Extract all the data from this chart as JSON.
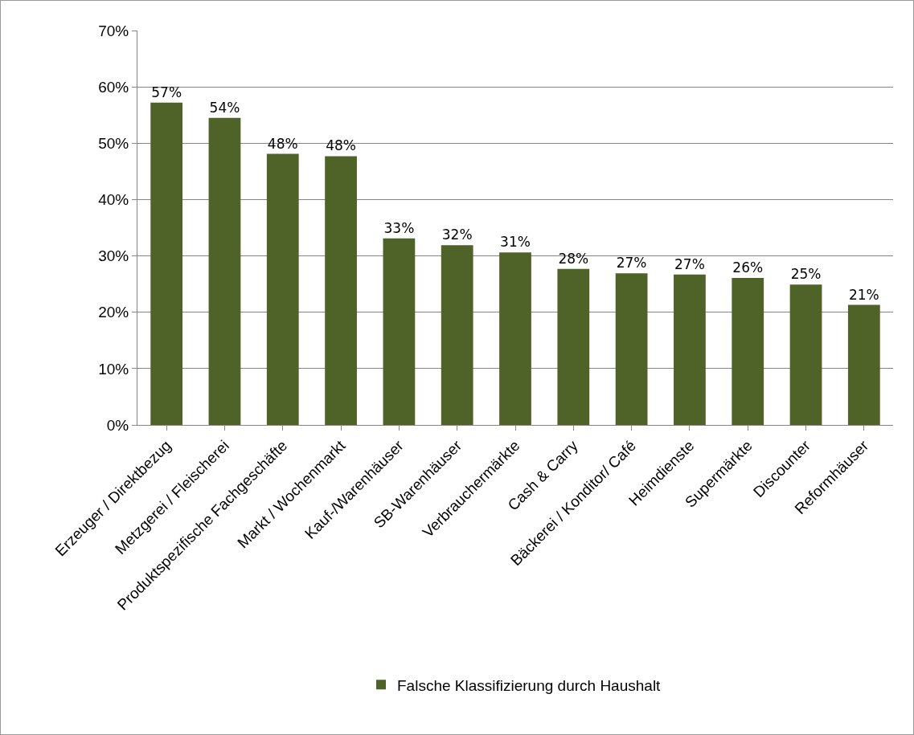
{
  "chart_data": {
    "type": "bar",
    "categories": [
      "Erzeuger / Direktbezug",
      "Metzgerei / Fleischerei",
      "Produktspezifische Fachgeschäfte",
      "Markt / Wochenmarkt",
      "Kauf-/Warenhäuser",
      "SB-Warenhäuser",
      "Verbrauchermärkte",
      "Cash & Carry",
      "Bäckerei / Konditor/ Café",
      "Heimdienste",
      "Supermärkte",
      "Discounter",
      "Reformhäuser"
    ],
    "series": [
      {
        "name": "Falsche Klassifizierung durch Haushalt",
        "color": "#4f6228",
        "values": [
          57.2,
          54.5,
          48.1,
          47.7,
          33.1,
          31.9,
          30.6,
          27.7,
          26.9,
          26.7,
          26.1,
          24.9,
          21.3
        ],
        "value_labels": [
          "57%",
          "54%",
          "48%",
          "48%",
          "33%",
          "32%",
          "31%",
          "28%",
          "27%",
          "27%",
          "26%",
          "25%",
          "21%"
        ]
      }
    ],
    "ylim": [
      0,
      70
    ],
    "yticks": [
      {
        "value": 0,
        "label": "0%"
      },
      {
        "value": 10,
        "label": "10%"
      },
      {
        "value": 20,
        "label": "20%"
      },
      {
        "value": 30,
        "label": "30%"
      },
      {
        "value": 40,
        "label": "40%"
      },
      {
        "value": 50,
        "label": "50%"
      },
      {
        "value": 60,
        "label": "60%"
      },
      {
        "value": 70,
        "label": "70%"
      }
    ],
    "grid": "y",
    "legend": "bottom"
  }
}
